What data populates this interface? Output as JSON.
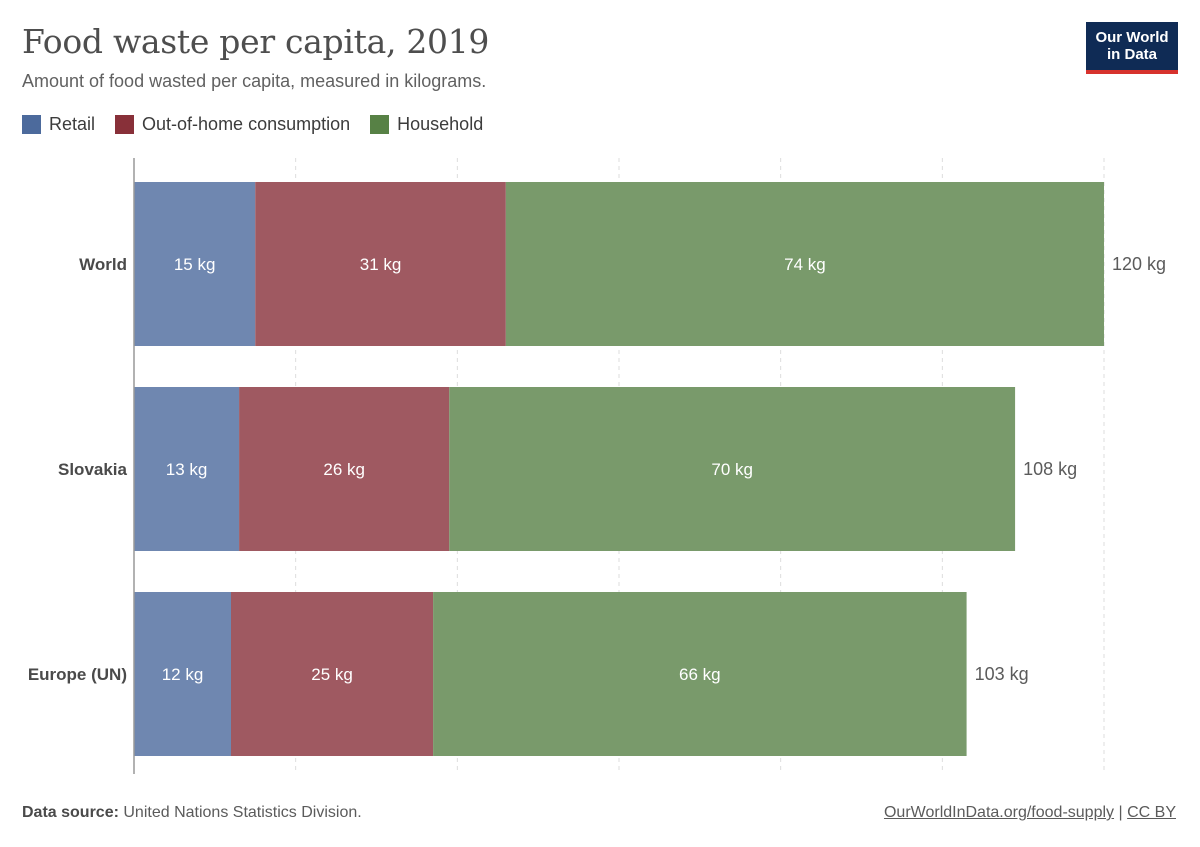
{
  "header": {
    "title": "Food waste per capita, 2019",
    "subtitle": "Amount of food wasted per capita, measured in kilograms.",
    "logo_line1": "Our World",
    "logo_line2": "in Data"
  },
  "legend": [
    {
      "name": "Retail",
      "color": "#4c6a9c"
    },
    {
      "name": "Out-of-home consumption",
      "color": "#883039"
    },
    {
      "name": "Household",
      "color": "#578145"
    }
  ],
  "chart_data": {
    "type": "bar",
    "orientation": "horizontal",
    "stacked": true,
    "title": "Food waste per capita, 2019",
    "subtitle": "Amount of food wasted per capita, measured in kilograms.",
    "unit": "kg",
    "categories": [
      "World",
      "Slovakia",
      "Europe (UN)"
    ],
    "series": [
      {
        "name": "Retail",
        "color": "#6f87b0",
        "values": [
          15,
          13,
          12
        ]
      },
      {
        "name": "Out-of-home consumption",
        "color": "#9f5961",
        "values": [
          31,
          26,
          25
        ]
      },
      {
        "name": "Household",
        "color": "#799a6b",
        "values": [
          74,
          70,
          66
        ]
      }
    ],
    "segment_labels": [
      [
        "15 kg",
        "31 kg",
        "74 kg"
      ],
      [
        "13 kg",
        "26 kg",
        "70 kg"
      ],
      [
        "12 kg",
        "25 kg",
        "66 kg"
      ]
    ],
    "totals": [
      120,
      108,
      103
    ],
    "total_labels": [
      "120 kg",
      "108 kg",
      "103 kg"
    ],
    "xlim": [
      0,
      120
    ],
    "gridlines": [
      20,
      40,
      60,
      80,
      100,
      120
    ],
    "grid": "vertical dashed",
    "legend_position": "top-left"
  },
  "footer": {
    "source_label": "Data source:",
    "source_text": "United Nations Statistics Division.",
    "link_text": "OurWorldInData.org/food-supply",
    "separator": "|",
    "license": "CC BY"
  }
}
